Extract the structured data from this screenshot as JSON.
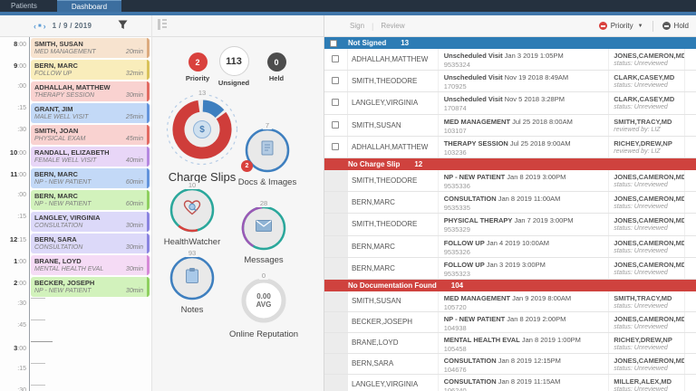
{
  "tabs": {
    "patients": "Patients",
    "dashboard": "Dashboard"
  },
  "schedule": {
    "date_nav": {
      "date": "1 / 9 / 2019"
    },
    "appointments": [
      {
        "time": "8:00",
        "patient": "SMITH, SUSAN",
        "type": "MED MANAGEMENT",
        "duration": "20min",
        "bg": "#f7e3cf",
        "edge": "#dcaa7e"
      },
      {
        "time": "9:00",
        "patient": "BERN, MARC",
        "type": "FOLLOW UP",
        "duration": "32min",
        "bg": "#f9edbb",
        "edge": "#d9c25a"
      },
      {
        "time": ":00",
        "patient": "ADHALLAH, MATTHEW",
        "type": "THERAPY SESSION",
        "duration": "30min",
        "bg": "#f9d2d0",
        "edge": "#e26a62"
      },
      {
        "time": ":15",
        "patient": "GRANT, JIM",
        "type": "MALE WELL VISIT",
        "duration": "25min",
        "bg": "#c3d9f7",
        "edge": "#6394dc"
      },
      {
        "time": ":30",
        "patient": "SMITH, JOAN",
        "type": "PHYSICAL EXAM",
        "duration": "45min",
        "bg": "#f9d2d0",
        "edge": "#e26a62"
      },
      {
        "time": "10:00",
        "patient": "RANDALL, ELIZABETH",
        "type": "FEMALE WELL VISIT",
        "duration": "40min",
        "bg": "#e8d6f7",
        "edge": "#b588e0"
      },
      {
        "time": "11:00",
        "patient": "BERN, MARC",
        "type": "NP - NEW PATIENT",
        "duration": "60min",
        "bg": "#c3d9f7",
        "edge": "#6394dc"
      },
      {
        "time": ":00",
        "patient": "BERN, MARC",
        "type": "NP - NEW PATIENT",
        "duration": "60min",
        "bg": "#d2f2bc",
        "edge": "#8ed05f"
      },
      {
        "time": ":15",
        "patient": "LANGLEY, VIRGINIA",
        "type": "CONSULTATION",
        "duration": "30min",
        "bg": "#dcd9f9",
        "edge": "#8a84e0"
      },
      {
        "time": "12:15",
        "patient": "BERN, SARA",
        "type": "CONSULTATION",
        "duration": "30min",
        "bg": "#dcd9f9",
        "edge": "#8a84e0"
      },
      {
        "time": "1:00",
        "patient": "BRANE, LOYD",
        "type": "MENTAL HEALTH EVAL",
        "duration": "30min",
        "bg": "#f5dbf5",
        "edge": "#d68ad8"
      },
      {
        "time": "2:00",
        "patient": "BECKER, JOSEPH",
        "type": "NP - NEW PATIENT",
        "duration": "30min",
        "bg": "#d2f2bc",
        "edge": "#8ed05f"
      }
    ],
    "empty_slots": [
      ":30",
      ":45",
      "3:00",
      ":15",
      ":30"
    ]
  },
  "widgets": {
    "priority": {
      "value": "2",
      "label": "Priority",
      "color": "#d9413d"
    },
    "unsigned": {
      "value": "113",
      "label": "Unsigned"
    },
    "held": {
      "value": "0",
      "label": "Held",
      "color": "#4d4d4d"
    },
    "charge_slips": {
      "label": "Charge Slips",
      "count": "13",
      "main_color": "#cf3d3a",
      "accent_color": "#3e7fbf"
    },
    "docs_images": {
      "label": "Docs & Images",
      "count": "7",
      "badge": "2",
      "ring_color": "#3e7fbf"
    },
    "healthwatcher": {
      "label": "HealthWatcher",
      "count": "10",
      "ring_color": "#2aa79b",
      "accent_color": "#d9413d"
    },
    "messages": {
      "label": "Messages",
      "count": "28",
      "ring_color": "#2aa79b",
      "accent_color": "#9b59b6"
    },
    "notes": {
      "label": "Notes",
      "count": "93",
      "ring_color": "#3e7fbf"
    },
    "online_reputation": {
      "label": "Online Reputation",
      "count": "0",
      "avg_value": "0.00",
      "avg_label": "AVG",
      "ring_color": "#dcdcdc"
    }
  },
  "worklist": {
    "toolbar": {
      "sign": "Sign",
      "review": "Review",
      "priority": "Priority",
      "hold": "Hold"
    },
    "sections": [
      {
        "title": "Not Signed",
        "count": "13",
        "color": "#2d7cb5",
        "checkboxes": true,
        "rows": [
          {
            "patient": "ADHALLAH,MATTHEW",
            "visit": "Unscheduled Visit",
            "when": "Jan 3 2019 1:05PM",
            "id": "9535324",
            "provider": "JONES,CAMERON,MD",
            "status": "status: Unreviewed"
          },
          {
            "patient": "SMITH,THEODORE",
            "visit": "Unscheduled Visit",
            "when": "Nov 19 2018 8:49AM",
            "id": "170925",
            "provider": "CLARK,CASEY,MD",
            "status": "status: Unreviewed"
          },
          {
            "patient": "LANGLEY,VIRGINIA",
            "visit": "Unscheduled Visit",
            "when": "Nov 5 2018 3:28PM",
            "id": "170874",
            "provider": "CLARK,CASEY,MD",
            "status": "status: Unreviewed"
          },
          {
            "patient": "SMITH,SUSAN",
            "visit": "MED MANAGEMENT",
            "when": "Jul 25 2018 8:00AM",
            "id": "103107",
            "provider": "SMITH,TRACY,MD",
            "status": "reviewed by: LIZ"
          },
          {
            "patient": "ADHALLAH,MATTHEW",
            "visit": "THERAPY SESSION",
            "when": "Jul 25 2018 9:00AM",
            "id": "103236",
            "provider": "RICHEY,DREW,NP",
            "status": "reviewed by: LIZ"
          }
        ]
      },
      {
        "title": "No Charge Slip",
        "count": "12",
        "color": "#cf423e",
        "checkboxes": false,
        "rows": [
          {
            "patient": "SMITH,THEODORE",
            "visit": "NP - NEW PATIENT",
            "when": "Jan 8 2019 3:00PM",
            "id": "9535336",
            "provider": "JONES,CAMERON,MD",
            "status": "status: Unreviewed"
          },
          {
            "patient": "BERN,MARC",
            "visit": "CONSULTATION",
            "when": "Jan 8 2019 11:00AM",
            "id": "9535335",
            "provider": "JONES,CAMERON,MD",
            "status": "status: Unreviewed"
          },
          {
            "patient": "SMITH,THEODORE",
            "visit": "PHYSICAL THERAPY",
            "when": "Jan 7 2019 3:00PM",
            "id": "9535329",
            "provider": "JONES,CAMERON,MD",
            "status": "status: Unreviewed"
          },
          {
            "patient": "BERN,MARC",
            "visit": "FOLLOW UP",
            "when": "Jan 4 2019 10:00AM",
            "id": "9535326",
            "provider": "JONES,CAMERON,MD",
            "status": "status: Unreviewed"
          },
          {
            "patient": "BERN,MARC",
            "visit": "FOLLOW UP",
            "when": "Jan 3 2019 3:00PM",
            "id": "9535323",
            "provider": "JONES,CAMERON,MD",
            "status": "status: Unreviewed"
          }
        ]
      },
      {
        "title": "No Documentation Found",
        "count": "104",
        "color": "#cf423e",
        "checkboxes": false,
        "rows": [
          {
            "patient": "SMITH,SUSAN",
            "visit": "MED MANAGEMENT",
            "when": "Jan 9 2019 8:00AM",
            "id": "105720",
            "provider": "SMITH,TRACY,MD",
            "status": "status: Unreviewed"
          },
          {
            "patient": "BECKER,JOSEPH",
            "visit": "NP - NEW PATIENT",
            "when": "Jan 8 2019 2:00PM",
            "id": "104938",
            "provider": "JONES,CAMERON,MD",
            "status": "status: Unreviewed"
          },
          {
            "patient": "BRANE,LOYD",
            "visit": "MENTAL HEALTH EVAL",
            "when": "Jan 8 2019 1:00PM",
            "id": "105458",
            "provider": "RICHEY,DREW,NP",
            "status": "status: Unreviewed"
          },
          {
            "patient": "BERN,SARA",
            "visit": "CONSULTATION",
            "when": "Jan 8 2019 12:15PM",
            "id": "104676",
            "provider": "JONES,CAMERON,MD",
            "status": "status: Unreviewed"
          },
          {
            "patient": "LANGLEY,VIRGINIA",
            "visit": "CONSULTATION",
            "when": "Jan 8 2019 11:15AM",
            "id": "106240",
            "provider": "MILLER,ALEX,MD",
            "status": "status: Unreviewed"
          }
        ]
      }
    ]
  }
}
